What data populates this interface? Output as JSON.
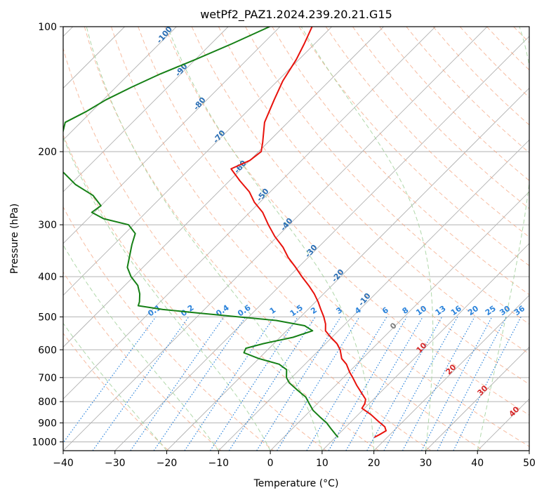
{
  "chart_data": {
    "type": "line",
    "subtype": "skew-t log-p diagram",
    "title": "wetPf2_PAZ1.2024.239.20.21.G15",
    "xlabel": "Temperature (°C)",
    "ylabel": "Pressure (hPa)",
    "xlim": [
      -40,
      50
    ],
    "ylim": [
      1050,
      100
    ],
    "y_scale": "log",
    "grid": true,
    "x_ticks": [
      -40,
      -30,
      -20,
      -10,
      0,
      10,
      20,
      30,
      40,
      50
    ],
    "x_tick_labels": [
      "−40",
      "−30",
      "−20",
      "−10",
      "0",
      "10",
      "20",
      "30",
      "40",
      "50"
    ],
    "y_ticks": [
      100,
      200,
      300,
      400,
      500,
      600,
      700,
      800,
      900,
      1000
    ],
    "y_tick_labels": [
      "100",
      "200",
      "300",
      "400",
      "500",
      "600",
      "700",
      "800",
      "900",
      "1000"
    ],
    "series": [
      {
        "role": "temperature",
        "color": "#e8120c",
        "points": [
          {
            "p": 100,
            "t": -73.8
          },
          {
            "p": 110,
            "t": -72.0
          },
          {
            "p": 120,
            "t": -70.5
          },
          {
            "p": 135,
            "t": -69.0
          },
          {
            "p": 150,
            "t": -67.0
          },
          {
            "p": 170,
            "t": -64.5
          },
          {
            "p": 190,
            "t": -61.0
          },
          {
            "p": 200,
            "t": -59.5
          },
          {
            "p": 210,
            "t": -60.0
          },
          {
            "p": 220,
            "t": -62.0
          },
          {
            "p": 235,
            "t": -58.0
          },
          {
            "p": 250,
            "t": -54.0
          },
          {
            "p": 265,
            "t": -51.0
          },
          {
            "p": 280,
            "t": -47.5
          },
          {
            "p": 300,
            "t": -44.0
          },
          {
            "p": 320,
            "t": -40.5
          },
          {
            "p": 340,
            "t": -36.8
          },
          {
            "p": 360,
            "t": -33.8
          },
          {
            "p": 380,
            "t": -30.5
          },
          {
            "p": 400,
            "t": -27.5
          },
          {
            "p": 420,
            "t": -24.5
          },
          {
            "p": 440,
            "t": -21.8
          },
          {
            "p": 460,
            "t": -19.5
          },
          {
            "p": 480,
            "t": -17.5
          },
          {
            "p": 500,
            "t": -15.5
          },
          {
            "p": 520,
            "t": -13.8
          },
          {
            "p": 540,
            "t": -12.5
          },
          {
            "p": 560,
            "t": -10.2
          },
          {
            "p": 580,
            "t": -7.8
          },
          {
            "p": 600,
            "t": -6.0
          },
          {
            "p": 630,
            "t": -4.0
          },
          {
            "p": 650,
            "t": -2.0
          },
          {
            "p": 680,
            "t": 0.2
          },
          {
            "p": 700,
            "t": 1.8
          },
          {
            "p": 730,
            "t": 4.0
          },
          {
            "p": 760,
            "t": 6.3
          },
          {
            "p": 790,
            "t": 8.5
          },
          {
            "p": 810,
            "t": 9.2
          },
          {
            "p": 830,
            "t": 9.5
          },
          {
            "p": 860,
            "t": 12.5
          },
          {
            "p": 890,
            "t": 15.0
          },
          {
            "p": 920,
            "t": 17.5
          },
          {
            "p": 940,
            "t": 18.5
          },
          {
            "p": 960,
            "t": 18.0
          },
          {
            "p": 975,
            "t": 17.5
          }
        ]
      },
      {
        "role": "dewpoint",
        "color": "#168016",
        "points": [
          {
            "p": 100,
            "t": -82.0
          },
          {
            "p": 110,
            "t": -86.0
          },
          {
            "p": 120,
            "t": -90.0
          },
          {
            "p": 130,
            "t": -94.0
          },
          {
            "p": 140,
            "t": -97.0
          },
          {
            "p": 150,
            "t": -99.5
          },
          {
            "p": 160,
            "t": -101.0
          },
          {
            "p": 170,
            "t": -103.0
          },
          {
            "p": 180,
            "t": -101.5
          },
          {
            "p": 190,
            "t": -100.5
          },
          {
            "p": 200,
            "t": -101.0
          },
          {
            "p": 210,
            "t": -99.0
          },
          {
            "p": 225,
            "t": -93.5
          },
          {
            "p": 240,
            "t": -89.0
          },
          {
            "p": 255,
            "t": -83.5
          },
          {
            "p": 270,
            "t": -80.0
          },
          {
            "p": 280,
            "t": -80.5
          },
          {
            "p": 290,
            "t": -77.0
          },
          {
            "p": 300,
            "t": -71.0
          },
          {
            "p": 315,
            "t": -68.0
          },
          {
            "p": 335,
            "t": -66.5
          },
          {
            "p": 360,
            "t": -64.5
          },
          {
            "p": 380,
            "t": -63.0
          },
          {
            "p": 400,
            "t": -60.5
          },
          {
            "p": 420,
            "t": -57.5
          },
          {
            "p": 440,
            "t": -55.5
          },
          {
            "p": 460,
            "t": -54.0
          },
          {
            "p": 470,
            "t": -53.5
          },
          {
            "p": 480,
            "t": -48.0
          },
          {
            "p": 490,
            "t": -40.0
          },
          {
            "p": 500,
            "t": -32.0
          },
          {
            "p": 510,
            "t": -24.0
          },
          {
            "p": 525,
            "t": -17.5
          },
          {
            "p": 540,
            "t": -15.0
          },
          {
            "p": 560,
            "t": -17.5
          },
          {
            "p": 580,
            "t": -22.0
          },
          {
            "p": 595,
            "t": -24.5
          },
          {
            "p": 610,
            "t": -24.0
          },
          {
            "p": 630,
            "t": -20.0
          },
          {
            "p": 650,
            "t": -15.0
          },
          {
            "p": 670,
            "t": -12.5
          },
          {
            "p": 700,
            "t": -11.0
          },
          {
            "p": 720,
            "t": -9.5
          },
          {
            "p": 750,
            "t": -6.5
          },
          {
            "p": 780,
            "t": -3.5
          },
          {
            "p": 810,
            "t": -1.5
          },
          {
            "p": 840,
            "t": 0.5
          },
          {
            "p": 870,
            "t": 3.0
          },
          {
            "p": 900,
            "t": 5.5
          },
          {
            "p": 930,
            "t": 7.5
          },
          {
            "p": 960,
            "t": 9.5
          },
          {
            "p": 975,
            "t": 10.5
          }
        ]
      }
    ],
    "reference_lines": {
      "isotherms_step": 10,
      "dry_adiabats_theta_k": [
        250,
        260,
        270,
        280,
        290,
        300,
        310,
        320,
        330,
        340,
        350,
        360,
        370,
        380,
        390,
        400,
        410,
        420,
        430,
        440,
        450,
        460,
        470,
        480,
        490,
        500,
        510,
        520,
        530,
        540,
        550
      ],
      "moist_adiabats_start_t": [
        -20,
        -10,
        0,
        10,
        20,
        30,
        40
      ],
      "mixing_ratio_g_kg": [
        0.1,
        0.2,
        0.4,
        0.6,
        1,
        1.5,
        2,
        3,
        4,
        6,
        8,
        10,
        13,
        16,
        20,
        25,
        30,
        36
      ]
    },
    "annotations": {
      "mixing_ratio_labels": [
        "0.1",
        "0.2",
        "0.4",
        "0.6",
        "1",
        "1.5",
        "2",
        "3",
        "4",
        "6",
        "8",
        "10",
        "13",
        "16",
        "20",
        "25",
        "30",
        "36"
      ],
      "blue_labels": [
        "-100",
        "-90",
        "-80",
        "-70",
        "-60",
        "-50",
        "-40",
        "-30",
        "-20",
        "-10"
      ],
      "red_labels": [
        "10",
        "20",
        "30",
        "40"
      ],
      "gray_labels": [
        "0"
      ]
    },
    "colors": {
      "isotherm": "#b2b2b2",
      "dry_adiabat": "#f4a582",
      "moist_adiabat": "#a6d3a0",
      "mixing_ratio": "#2b83db",
      "blue_label": "#2b6fb5",
      "red_label": "#d62728",
      "gray_label": "#808080",
      "arc": "#d9c3a3"
    }
  }
}
